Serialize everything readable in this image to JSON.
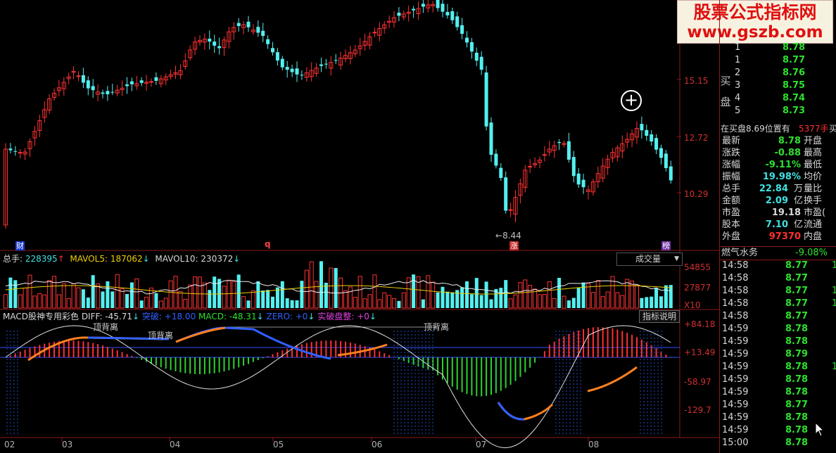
{
  "watermark": {
    "line1": "股票公式指标网",
    "line2": "www.gszb.com"
  },
  "main_chart": {
    "price_axis": [
      "15.15",
      "12.72",
      "10.29"
    ],
    "low_label": "8.44",
    "markers": {
      "cai": "财",
      "q": "q",
      "zhang": "涨",
      "bang": "榜"
    },
    "colors": {
      "up": "#ff3232",
      "down": "#54f0f0",
      "axis": "#8a1a1a"
    }
  },
  "volume_panel": {
    "total_label": "总手:",
    "total_value": "228395",
    "mavol5_label": "MAVOL5:",
    "mavol5_value": "187062",
    "mavol10_label": "MAVOL10:",
    "mavol10_value": "230372",
    "dropdown_label": "成交量",
    "axis": [
      "54855",
      "27877",
      "X10"
    ]
  },
  "macd_panel": {
    "name": "MACD股神专用彩色",
    "diff_label": "DIFF:",
    "diff_value": "-45.71",
    "tupo_label": "突破:",
    "tupo_value": "+18.00",
    "macd_label": "MACD:",
    "macd_value": "-48.31",
    "zero_label": "ZERO:",
    "zero_value": "+0",
    "shipo_label": "实破盘整:",
    "shipo_value": "+0",
    "help_button": "指标说明",
    "annotations": [
      "顶背离",
      "顶背离",
      "顶背离"
    ],
    "axis": [
      "+84.18",
      "+13.49",
      "-58.97",
      "-129.7"
    ]
  },
  "date_axis": [
    "02",
    "03",
    "04",
    "05",
    "06",
    "07",
    "08"
  ],
  "right_panel": {
    "buy_section": {
      "label_top": "买",
      "label_bottom": "盘",
      "levels": [
        {
          "n": "1",
          "price": "8.78"
        },
        {
          "n": "1",
          "price": "8.77"
        },
        {
          "n": "2",
          "price": "8.76"
        },
        {
          "n": "3",
          "price": "8.75"
        },
        {
          "n": "4",
          "price": "8.74"
        },
        {
          "n": "5",
          "price": "8.73"
        }
      ]
    },
    "queue": {
      "text": "在买盘8.69位置有",
      "qty": "5377手",
      "side": "买"
    },
    "stats": [
      {
        "label": "最新",
        "value": "8.78",
        "right": "开盘"
      },
      {
        "label": "涨跌",
        "value": "-0.88",
        "right": "最高"
      },
      {
        "label": "涨幅",
        "value": "-9.11%",
        "right": "最低"
      },
      {
        "label": "振幅",
        "value": "19.98%",
        "right": "均价"
      },
      {
        "label": "总手",
        "value": "22.84",
        "unit": "万",
        "right": "量比"
      },
      {
        "label": "金额",
        "value": "2.09",
        "unit": "亿",
        "right": "换手"
      },
      {
        "label": "市盈",
        "value": "19.18",
        "right": "市盈("
      },
      {
        "label": "股本",
        "value": "7.10",
        "unit": "亿",
        "right": "流通"
      },
      {
        "label": "外盘",
        "value": "97370",
        "right": "内盘"
      }
    ],
    "industry": {
      "name": "燃气水务",
      "change": "-9.08%"
    },
    "ticks": [
      {
        "time": "14:58",
        "price": "8.77",
        "vol": "1"
      },
      {
        "time": "14:58",
        "price": "8.77",
        "vol": ""
      },
      {
        "time": "14:58",
        "price": "8.77",
        "vol": "1"
      },
      {
        "time": "14:58",
        "price": "8.77",
        "vol": "1"
      },
      {
        "time": "14:58",
        "price": "8.77",
        "vol": ""
      },
      {
        "time": "14:59",
        "price": "8.78",
        "vol": ""
      },
      {
        "time": "14:59",
        "price": "8.78",
        "vol": ""
      },
      {
        "time": "14:59",
        "price": "8.79",
        "vol": ""
      },
      {
        "time": "14:59",
        "price": "8.78",
        "vol": "1"
      },
      {
        "time": "14:59",
        "price": "8.78",
        "vol": ""
      },
      {
        "time": "14:59",
        "price": "8.78",
        "vol": ""
      },
      {
        "time": "14:59",
        "price": "8.77",
        "vol": ""
      },
      {
        "time": "14:59",
        "price": "8.78",
        "vol": ""
      },
      {
        "time": "14:59",
        "price": "8.78",
        "vol": ""
      },
      {
        "time": "15:00",
        "price": "8.78",
        "vol": ""
      }
    ]
  }
}
